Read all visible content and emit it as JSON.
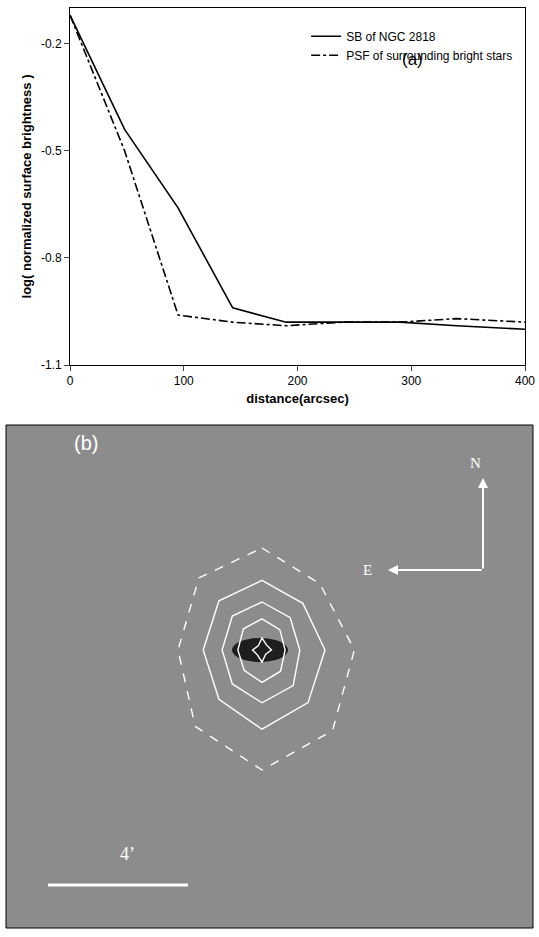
{
  "chart_data": {
    "type": "line",
    "annotations": [
      "(a)"
    ],
    "x_label": "distance(arcsec)",
    "y_label": "log( normalized surface brightness )",
    "xlim": [
      0,
      400
    ],
    "xticks": [
      0,
      100,
      200,
      300,
      400
    ],
    "ylim": [
      -1.1,
      -0.1
    ],
    "yticks": [
      -0.2,
      -0.5,
      -0.8,
      -1.1
    ],
    "grid": false,
    "legend": "upper right",
    "series": [
      {
        "name": "SB of NGC 2818",
        "color": "#000000",
        "line_style": "solid",
        "x": [
          0,
          48,
          95,
          143,
          190,
          240,
          290,
          340,
          400
        ],
        "values": [
          -0.12,
          -0.44,
          -0.66,
          -0.94,
          -0.98,
          -0.98,
          -0.98,
          -0.99,
          -1.0
        ]
      },
      {
        "name": "PSF of surrounding bright stars",
        "color": "#000000",
        "line_style": "dashdot",
        "x": [
          0,
          48,
          95,
          143,
          190,
          240,
          290,
          340,
          400
        ],
        "values": [
          -0.12,
          -0.5,
          -0.96,
          -0.98,
          -0.99,
          -0.98,
          -0.98,
          -0.97,
          -0.98
        ]
      }
    ]
  },
  "image_panel": {
    "label": "(b)",
    "north": "N",
    "east": "E",
    "scale_bar": "4’"
  }
}
